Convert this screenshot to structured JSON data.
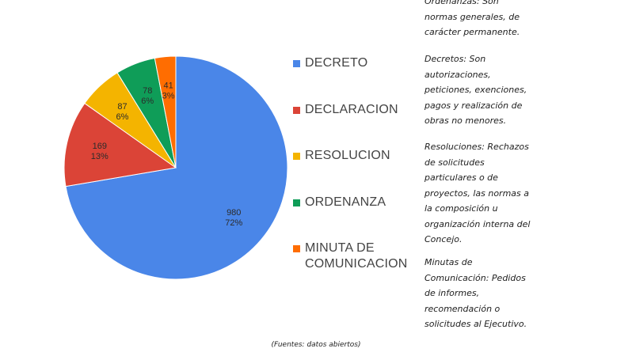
{
  "chart_data": {
    "type": "pie",
    "slices": [
      {
        "label": "DECRETO",
        "value": 980,
        "percent": "72%",
        "color": "#4a86e8"
      },
      {
        "label": "DECLARACION",
        "value": 169,
        "percent": "13%",
        "color": "#db4437"
      },
      {
        "label": "RESOLUCION",
        "value": 87,
        "percent": "6%",
        "color": "#f4b400"
      },
      {
        "label": "ORDENANZA",
        "value": 78,
        "percent": "6%",
        "color": "#0f9d58"
      },
      {
        "label": "MINUTA DE COMUNICACION",
        "value": 41,
        "percent": "3%",
        "color": "#ff6d01"
      }
    ],
    "legend_position": "right"
  },
  "legend": {
    "items": [
      {
        "label": "DECRETO",
        "color": "#4a86e8"
      },
      {
        "label": "DECLARACION",
        "color": "#db4437"
      },
      {
        "label": "RESOLUCION",
        "color": "#f4b400"
      },
      {
        "label": "ORDENANZA",
        "color": "#0f9d58"
      },
      {
        "label": "MINUTA DE COMUNICACION",
        "color": "#ff6d01"
      }
    ]
  },
  "notes": [
    "Ordenanzas: Son\nnormas generales, de\ncarácter permanente.",
    "Decretos: Son\nautorizaciones,\npeticiones, exenciones,\npagos y realización de\nobras no menores.",
    " Resoluciones: Rechazos\nde solicitudes\nparticulares o de\nproyectos, las normas a\nla composición u\norganización interna del\nConcejo.",
    "Minutas de\nComunicación: Pedidos\nde informes,\nrecomendación o\nsolicitudes al Ejecutivo."
  ],
  "source": "(Fuentes: datos abiertos)"
}
